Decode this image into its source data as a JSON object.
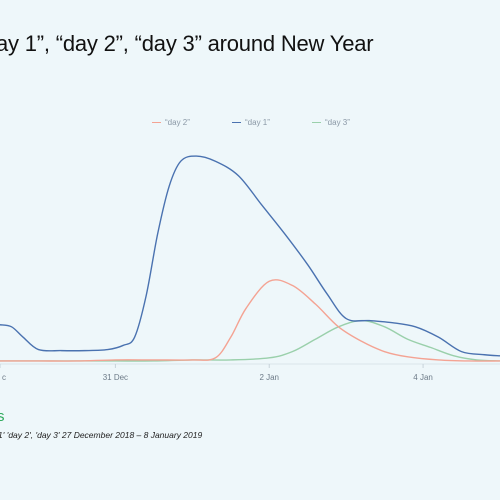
{
  "title": "ay 1”, “day 2”, “day 3” around New Year",
  "subtitle": "1' 'day 2', 'day 3' 27 December 2018 – 8 January 2019",
  "source_fragment": "s",
  "chart_data": {
    "type": "line",
    "title": "ay 1”, “day 2”, “day 3” around New Year",
    "xlabel": "",
    "ylabel": "",
    "x_ticks": [
      {
        "x": 29.5,
        "label": "c"
      },
      {
        "x": 31,
        "label": "31 Dec"
      },
      {
        "x": 33,
        "label": "2 Jan"
      },
      {
        "x": 35,
        "label": "4 Jan"
      }
    ],
    "xlim": [
      29.5,
      36
    ],
    "ylim": [
      0,
      100
    ],
    "grid": false,
    "legend_position": "top-center",
    "series": [
      {
        "name": "“day 2”",
        "color": "#f4a393",
        "x": [
          29.5,
          30.0,
          30.5,
          31.0,
          31.5,
          32.0,
          32.3,
          32.5,
          32.7,
          33.0,
          33.3,
          33.6,
          33.9,
          34.2,
          34.5,
          34.8,
          35.2,
          35.6,
          36.0
        ],
        "values": [
          0.5,
          0.5,
          0.5,
          1.0,
          1.0,
          1.0,
          2.0,
          12.0,
          26.0,
          39.0,
          37.0,
          28.0,
          17.0,
          10.0,
          5.0,
          2.5,
          1.0,
          0.5,
          0.5
        ]
      },
      {
        "name": "“day 1”",
        "color": "#4a72b0",
        "x": [
          29.5,
          29.65,
          29.8,
          30.0,
          30.3,
          30.6,
          30.9,
          31.1,
          31.25,
          31.4,
          31.55,
          31.7,
          31.85,
          32.05,
          32.3,
          32.6,
          32.9,
          33.2,
          33.5,
          33.75,
          34.0,
          34.3,
          34.6,
          34.9,
          35.2,
          35.5,
          35.8,
          36.0
        ],
        "values": [
          18.0,
          17.0,
          12.0,
          6.0,
          5.5,
          5.5,
          6.0,
          8.0,
          12.0,
          32.0,
          62.0,
          85.0,
          97.0,
          99.5,
          97.0,
          90.0,
          76.0,
          62.0,
          47.0,
          33.0,
          21.0,
          20.0,
          19.0,
          17.0,
          12.0,
          5.0,
          3.5,
          3.0
        ]
      },
      {
        "name": "“day 3”",
        "color": "#9ad0ab",
        "x": [
          29.5,
          30.0,
          30.5,
          31.0,
          31.5,
          32.0,
          32.5,
          33.0,
          33.3,
          33.6,
          33.9,
          34.2,
          34.5,
          34.8,
          35.1,
          35.4,
          35.7,
          36.0
        ],
        "values": [
          0.5,
          0.5,
          0.5,
          0.5,
          0.5,
          1.0,
          1.0,
          2.0,
          5.0,
          11.0,
          17.0,
          20.0,
          17.0,
          11.0,
          7.0,
          3.0,
          1.0,
          0.5
        ]
      }
    ]
  }
}
